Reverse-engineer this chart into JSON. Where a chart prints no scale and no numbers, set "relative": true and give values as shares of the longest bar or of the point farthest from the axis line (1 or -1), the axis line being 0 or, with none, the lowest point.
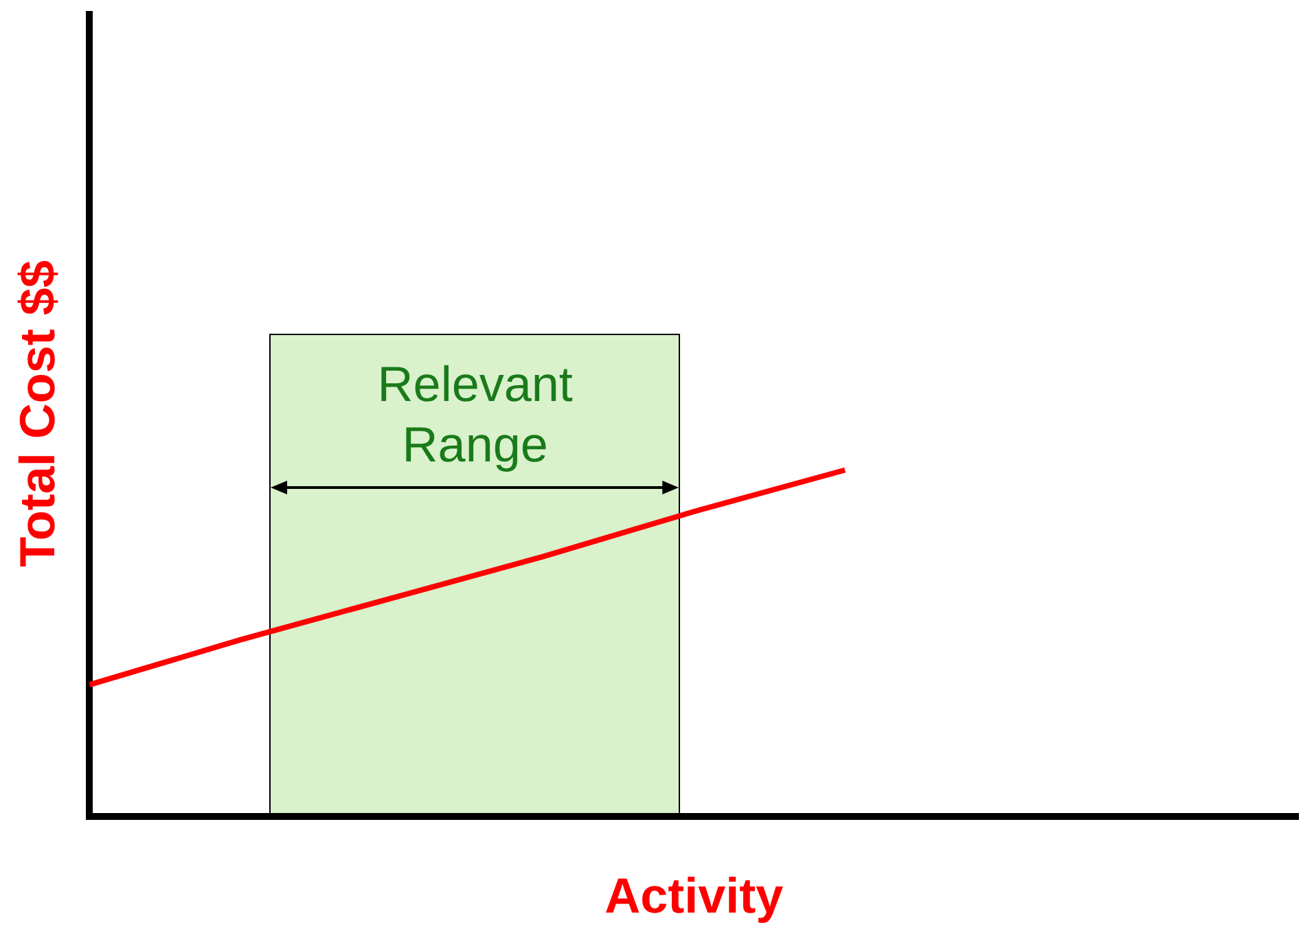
{
  "chart_data": {
    "type": "line",
    "relative": true,
    "categories": [
      null,
      null,
      null,
      null,
      null,
      null,
      null,
      null,
      null
    ],
    "values": [
      0.38,
      0.51,
      0.63,
      0.75,
      0.88,
      1,
      null,
      null,
      null
    ],
    "color": "#ff0000",
    "xlabel": "Activity",
    "ylabel": "Total Cost $$",
    "annotations": [
      "Relevant Range"
    ],
    "marker": "none",
    "line_style": "solid"
  }
}
